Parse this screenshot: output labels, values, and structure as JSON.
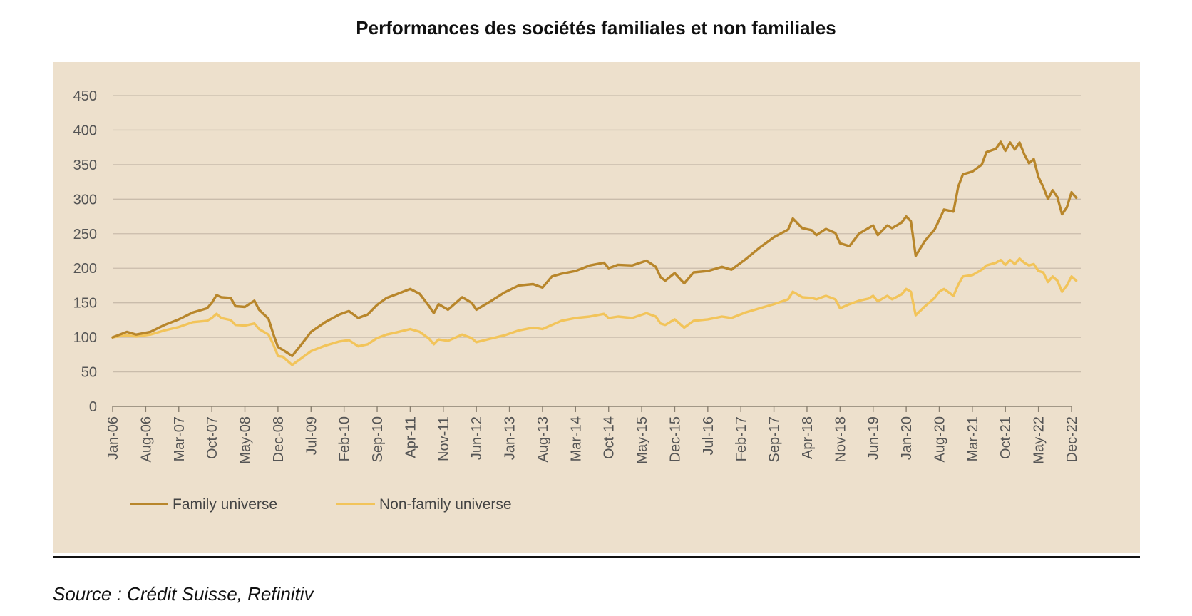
{
  "page": {
    "title": "Performances des sociétés familiales et non familiales",
    "source": "Source : Crédit Suisse, Refinitiv"
  },
  "colors": {
    "panel_bg": "#ede0cc",
    "grid": "#c9bcab",
    "family": "#b8862b",
    "non_family": "#f2c45a"
  },
  "chart_data": {
    "type": "line",
    "title": "Performances des sociétés familiales et non familiales",
    "xlabel": "",
    "ylabel": "",
    "ylim": [
      0,
      450
    ],
    "yticks": [
      0,
      50,
      100,
      150,
      200,
      250,
      300,
      350,
      400,
      450
    ],
    "xlim": [
      "2006-01",
      "2022-12"
    ],
    "xtick_labels": [
      "Jan-06",
      "Aug-06",
      "Mar-07",
      "Oct-07",
      "May-08",
      "Dec-08",
      "Jul-09",
      "Feb-10",
      "Sep-10",
      "Apr-11",
      "Nov-11",
      "Jun-12",
      "Jan-13",
      "Aug-13",
      "Mar-14",
      "Oct-14",
      "May-15",
      "Dec-15",
      "Jul-16",
      "Feb-17",
      "Sep-17",
      "Apr-18",
      "Nov-18",
      "Jun-19",
      "Jan-20",
      "Aug-20",
      "Mar-21",
      "Oct-21",
      "May-22",
      "Dec-22"
    ],
    "grid": true,
    "legend_position": "bottom-left",
    "series": [
      {
        "name": "Family universe",
        "color": "#b8862b",
        "points": [
          [
            "2006-01",
            100
          ],
          [
            "2006-04",
            108
          ],
          [
            "2006-06",
            104
          ],
          [
            "2006-09",
            108
          ],
          [
            "2006-12",
            118
          ],
          [
            "2007-03",
            126
          ],
          [
            "2007-06",
            136
          ],
          [
            "2007-09",
            142
          ],
          [
            "2007-10",
            150
          ],
          [
            "2007-11",
            161
          ],
          [
            "2007-12",
            158
          ],
          [
            "2008-02",
            157
          ],
          [
            "2008-03",
            145
          ],
          [
            "2008-05",
            144
          ],
          [
            "2008-07",
            153
          ],
          [
            "2008-08",
            140
          ],
          [
            "2008-10",
            127
          ],
          [
            "2008-11",
            105
          ],
          [
            "2008-12",
            86
          ],
          [
            "2009-01",
            82
          ],
          [
            "2009-03",
            73
          ],
          [
            "2009-05",
            90
          ],
          [
            "2009-07",
            108
          ],
          [
            "2009-10",
            122
          ],
          [
            "2010-01",
            133
          ],
          [
            "2010-03",
            138
          ],
          [
            "2010-05",
            128
          ],
          [
            "2010-07",
            133
          ],
          [
            "2010-09",
            147
          ],
          [
            "2010-11",
            157
          ],
          [
            "2011-01",
            162
          ],
          [
            "2011-04",
            170
          ],
          [
            "2011-06",
            163
          ],
          [
            "2011-08",
            145
          ],
          [
            "2011-09",
            135
          ],
          [
            "2011-10",
            148
          ],
          [
            "2011-12",
            140
          ],
          [
            "2012-03",
            158
          ],
          [
            "2012-05",
            150
          ],
          [
            "2012-06",
            140
          ],
          [
            "2012-09",
            152
          ],
          [
            "2012-12",
            165
          ],
          [
            "2013-03",
            175
          ],
          [
            "2013-06",
            177
          ],
          [
            "2013-08",
            172
          ],
          [
            "2013-10",
            188
          ],
          [
            "2013-12",
            192
          ],
          [
            "2014-03",
            196
          ],
          [
            "2014-06",
            204
          ],
          [
            "2014-09",
            208
          ],
          [
            "2014-10",
            200
          ],
          [
            "2014-12",
            205
          ],
          [
            "2015-03",
            204
          ],
          [
            "2015-06",
            211
          ],
          [
            "2015-08",
            202
          ],
          [
            "2015-09",
            187
          ],
          [
            "2015-10",
            182
          ],
          [
            "2015-12",
            193
          ],
          [
            "2016-02",
            178
          ],
          [
            "2016-04",
            194
          ],
          [
            "2016-07",
            196
          ],
          [
            "2016-10",
            202
          ],
          [
            "2016-12",
            198
          ],
          [
            "2017-03",
            213
          ],
          [
            "2017-06",
            230
          ],
          [
            "2017-09",
            245
          ],
          [
            "2017-12",
            256
          ],
          [
            "2018-01",
            272
          ],
          [
            "2018-03",
            258
          ],
          [
            "2018-05",
            255
          ],
          [
            "2018-06",
            248
          ],
          [
            "2018-08",
            257
          ],
          [
            "2018-10",
            251
          ],
          [
            "2018-11",
            236
          ],
          [
            "2019-01",
            232
          ],
          [
            "2019-03",
            250
          ],
          [
            "2019-05",
            258
          ],
          [
            "2019-06",
            262
          ],
          [
            "2019-07",
            248
          ],
          [
            "2019-09",
            262
          ],
          [
            "2019-10",
            258
          ],
          [
            "2019-12",
            266
          ],
          [
            "2020-01",
            275
          ],
          [
            "2020-02",
            268
          ],
          [
            "2020-03",
            218
          ],
          [
            "2020-05",
            240
          ],
          [
            "2020-07",
            256
          ],
          [
            "2020-08",
            270
          ],
          [
            "2020-09",
            285
          ],
          [
            "2020-11",
            282
          ],
          [
            "2020-12",
            318
          ],
          [
            "2021-01",
            336
          ],
          [
            "2021-03",
            340
          ],
          [
            "2021-05",
            350
          ],
          [
            "2021-06",
            368
          ],
          [
            "2021-08",
            373
          ],
          [
            "2021-09",
            383
          ],
          [
            "2021-10",
            370
          ],
          [
            "2021-11",
            382
          ],
          [
            "2021-12",
            372
          ],
          [
            "2022-01",
            382
          ],
          [
            "2022-02",
            365
          ],
          [
            "2022-03",
            352
          ],
          [
            "2022-04",
            358
          ],
          [
            "2022-05",
            332
          ],
          [
            "2022-06",
            318
          ],
          [
            "2022-07",
            300
          ],
          [
            "2022-08",
            313
          ],
          [
            "2022-09",
            303
          ],
          [
            "2022-10",
            278
          ],
          [
            "2022-11",
            288
          ],
          [
            "2022-12",
            310
          ],
          [
            "2023-01",
            302
          ]
        ]
      },
      {
        "name": "Non-family universe",
        "color": "#f2c45a",
        "points": [
          [
            "2006-01",
            100
          ],
          [
            "2006-04",
            103
          ],
          [
            "2006-06",
            101
          ],
          [
            "2006-09",
            104
          ],
          [
            "2006-12",
            110
          ],
          [
            "2007-03",
            115
          ],
          [
            "2007-06",
            122
          ],
          [
            "2007-09",
            124
          ],
          [
            "2007-10",
            128
          ],
          [
            "2007-11",
            134
          ],
          [
            "2007-12",
            128
          ],
          [
            "2008-02",
            125
          ],
          [
            "2008-03",
            118
          ],
          [
            "2008-05",
            117
          ],
          [
            "2008-07",
            120
          ],
          [
            "2008-08",
            112
          ],
          [
            "2008-10",
            104
          ],
          [
            "2008-11",
            90
          ],
          [
            "2008-12",
            73
          ],
          [
            "2009-01",
            72
          ],
          [
            "2009-03",
            60
          ],
          [
            "2009-05",
            70
          ],
          [
            "2009-07",
            80
          ],
          [
            "2009-10",
            88
          ],
          [
            "2010-01",
            94
          ],
          [
            "2010-03",
            96
          ],
          [
            "2010-05",
            87
          ],
          [
            "2010-07",
            90
          ],
          [
            "2010-09",
            99
          ],
          [
            "2010-11",
            104
          ],
          [
            "2011-01",
            107
          ],
          [
            "2011-04",
            112
          ],
          [
            "2011-06",
            108
          ],
          [
            "2011-08",
            98
          ],
          [
            "2011-09",
            90
          ],
          [
            "2011-10",
            97
          ],
          [
            "2011-12",
            95
          ],
          [
            "2012-03",
            104
          ],
          [
            "2012-05",
            99
          ],
          [
            "2012-06",
            93
          ],
          [
            "2012-09",
            98
          ],
          [
            "2012-12",
            103
          ],
          [
            "2013-03",
            110
          ],
          [
            "2013-06",
            114
          ],
          [
            "2013-08",
            112
          ],
          [
            "2013-10",
            118
          ],
          [
            "2013-12",
            124
          ],
          [
            "2014-03",
            128
          ],
          [
            "2014-06",
            130
          ],
          [
            "2014-09",
            134
          ],
          [
            "2014-10",
            128
          ],
          [
            "2014-12",
            130
          ],
          [
            "2015-03",
            128
          ],
          [
            "2015-06",
            135
          ],
          [
            "2015-08",
            130
          ],
          [
            "2015-09",
            120
          ],
          [
            "2015-10",
            118
          ],
          [
            "2015-12",
            126
          ],
          [
            "2016-02",
            114
          ],
          [
            "2016-04",
            124
          ],
          [
            "2016-07",
            126
          ],
          [
            "2016-10",
            130
          ],
          [
            "2016-12",
            128
          ],
          [
            "2017-03",
            136
          ],
          [
            "2017-06",
            142
          ],
          [
            "2017-09",
            148
          ],
          [
            "2017-12",
            155
          ],
          [
            "2018-01",
            166
          ],
          [
            "2018-03",
            158
          ],
          [
            "2018-05",
            157
          ],
          [
            "2018-06",
            155
          ],
          [
            "2018-08",
            160
          ],
          [
            "2018-10",
            155
          ],
          [
            "2018-11",
            142
          ],
          [
            "2019-01",
            148
          ],
          [
            "2019-03",
            153
          ],
          [
            "2019-05",
            156
          ],
          [
            "2019-06",
            160
          ],
          [
            "2019-07",
            152
          ],
          [
            "2019-09",
            160
          ],
          [
            "2019-10",
            155
          ],
          [
            "2019-12",
            162
          ],
          [
            "2020-01",
            170
          ],
          [
            "2020-02",
            166
          ],
          [
            "2020-03",
            132
          ],
          [
            "2020-05",
            145
          ],
          [
            "2020-07",
            157
          ],
          [
            "2020-08",
            166
          ],
          [
            "2020-09",
            170
          ],
          [
            "2020-11",
            160
          ],
          [
            "2020-12",
            176
          ],
          [
            "2021-01",
            188
          ],
          [
            "2021-03",
            190
          ],
          [
            "2021-05",
            198
          ],
          [
            "2021-06",
            204
          ],
          [
            "2021-08",
            208
          ],
          [
            "2021-09",
            212
          ],
          [
            "2021-10",
            205
          ],
          [
            "2021-11",
            212
          ],
          [
            "2021-12",
            206
          ],
          [
            "2022-01",
            214
          ],
          [
            "2022-02",
            208
          ],
          [
            "2022-03",
            204
          ],
          [
            "2022-04",
            206
          ],
          [
            "2022-05",
            196
          ],
          [
            "2022-06",
            194
          ],
          [
            "2022-07",
            180
          ],
          [
            "2022-08",
            188
          ],
          [
            "2022-09",
            182
          ],
          [
            "2022-10",
            166
          ],
          [
            "2022-11",
            175
          ],
          [
            "2022-12",
            188
          ],
          [
            "2023-01",
            182
          ]
        ]
      }
    ]
  }
}
